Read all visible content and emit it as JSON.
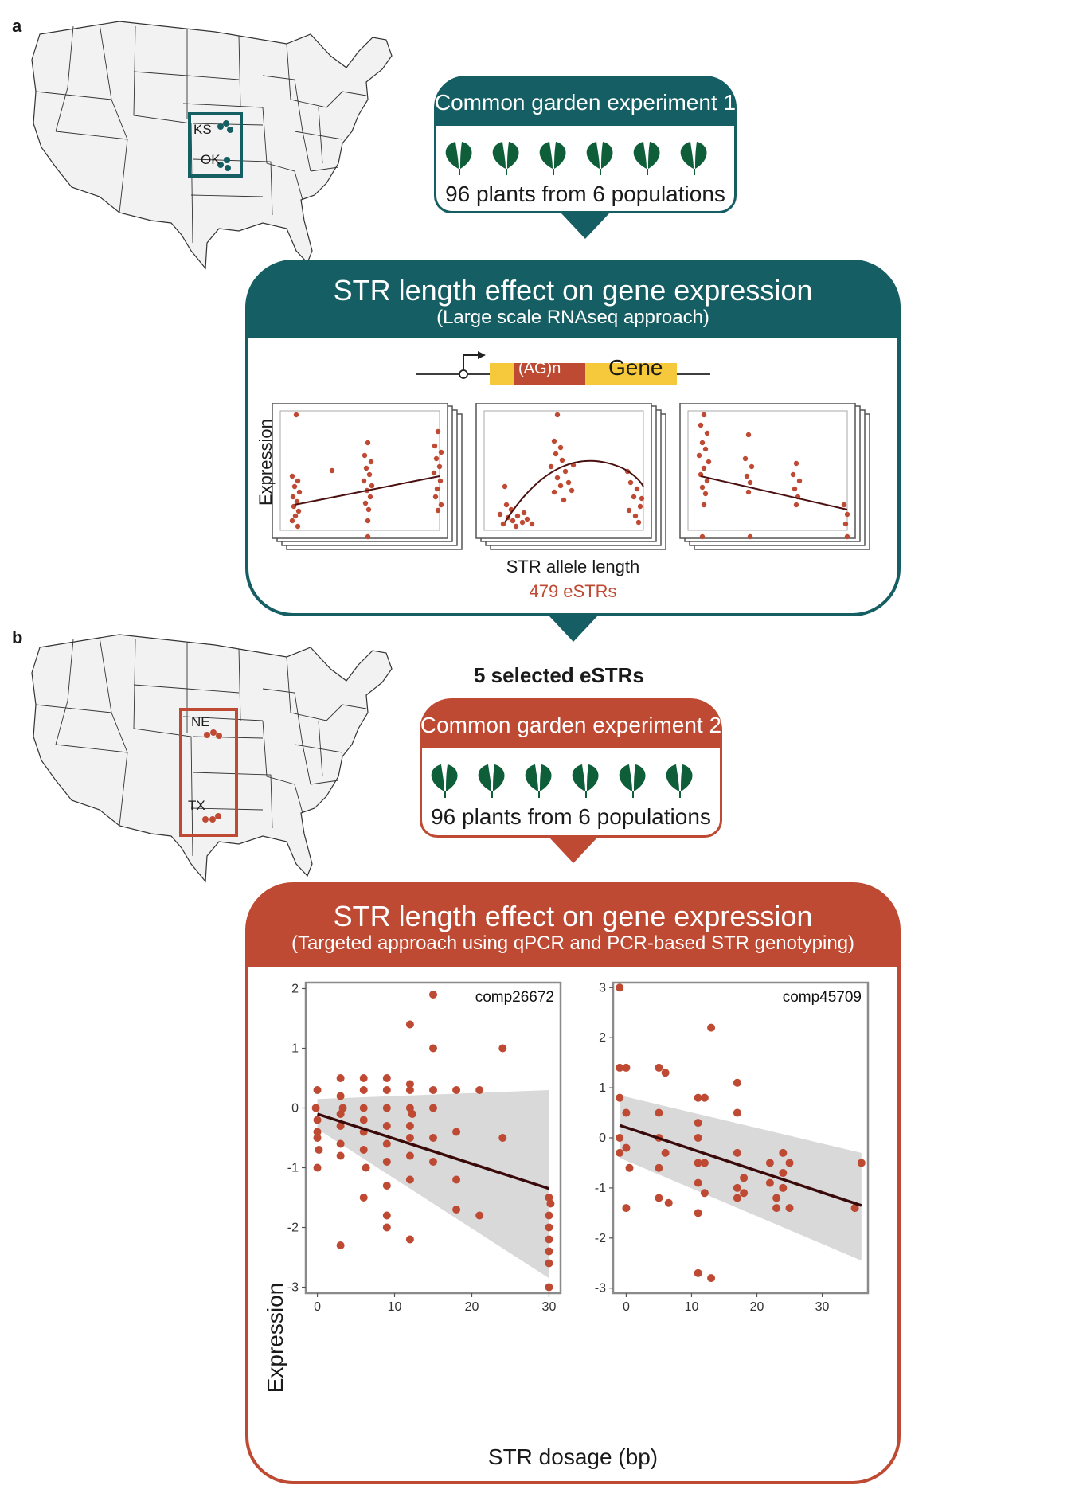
{
  "panel_a": {
    "letter": "a",
    "map_states": [
      "KS",
      "OK"
    ],
    "experiment_title": "Common garden experiment 1",
    "plants_label": "96 plants from 6 populations",
    "plant_icon": "leaf-pair-icon",
    "analysis_title": "STR length effect on gene expression",
    "analysis_subtitle": "(Large scale RNAseq approach)",
    "gene_diagram": {
      "repeat_label": "(AG)n",
      "gene_label": "Gene"
    },
    "plot_ylabel": "Expression",
    "plot_xlabel": "STR allele length",
    "result_label": "479 eSTRs"
  },
  "transition": {
    "selected_label": "5 selected eSTRs"
  },
  "panel_b": {
    "letter": "b",
    "map_states": [
      "NE",
      "TX"
    ],
    "experiment_title": "Common garden experiment 2",
    "plants_label": "96 plants from 6 populations",
    "analysis_title": "STR length effect on gene expression",
    "analysis_subtitle": "(Targeted approach using qPCR and PCR-based STR genotyping)",
    "xlabel": "STR dosage (bp)",
    "ylabel": "Expression"
  },
  "colors": {
    "teal": "#155e63",
    "rust": "#bf4a33",
    "leaf": "#0f5e3a",
    "gene_yellow": "#f6c83b"
  },
  "chart_data": [
    {
      "type": "scatter",
      "title": "comp26672",
      "xlabel": "STR dosage (bp)",
      "ylabel": "Expression",
      "xlim": [
        -1.5,
        31.5
      ],
      "ylim": [
        -3.1,
        2.1
      ],
      "x_ticks": [
        0,
        10,
        20,
        30
      ],
      "y_ticks": [
        -3,
        -2,
        -1,
        0,
        1,
        2
      ],
      "fit_line": {
        "x": [
          0,
          30
        ],
        "y": [
          -0.1,
          -1.35
        ]
      },
      "confidence_band": {
        "x": [
          0,
          30
        ],
        "upper": [
          0.15,
          0.3
        ],
        "lower": [
          -0.35,
          -2.85
        ]
      },
      "points": [
        [
          0,
          0.3
        ],
        [
          0,
          -0.4
        ],
        [
          0,
          -0.5
        ],
        [
          0,
          -0.2
        ],
        [
          0,
          -1.0
        ],
        [
          0.2,
          -0.7
        ],
        [
          -0.2,
          0.0
        ],
        [
          3,
          0.5
        ],
        [
          3,
          0.2
        ],
        [
          3,
          -0.1
        ],
        [
          3,
          -0.3
        ],
        [
          3,
          -0.6
        ],
        [
          3,
          -0.8
        ],
        [
          3,
          -2.3
        ],
        [
          3.3,
          0.0
        ],
        [
          6,
          0.5
        ],
        [
          6,
          0.3
        ],
        [
          6,
          0.0
        ],
        [
          6,
          -0.2
        ],
        [
          6,
          -0.4
        ],
        [
          6,
          -0.7
        ],
        [
          6,
          -1.5
        ],
        [
          6.3,
          -1.0
        ],
        [
          9,
          0.5
        ],
        [
          9,
          0.3
        ],
        [
          9,
          0.0
        ],
        [
          9,
          -0.3
        ],
        [
          9,
          -0.6
        ],
        [
          9,
          -0.9
        ],
        [
          9,
          -1.3
        ],
        [
          9,
          -1.8
        ],
        [
          9,
          -2.0
        ],
        [
          12,
          1.4
        ],
        [
          12,
          0.4
        ],
        [
          12,
          0.3
        ],
        [
          12,
          0.0
        ],
        [
          12,
          -0.3
        ],
        [
          12,
          -0.5
        ],
        [
          12,
          -0.8
        ],
        [
          12,
          -1.2
        ],
        [
          12,
          -2.2
        ],
        [
          12.3,
          -0.1
        ],
        [
          15,
          1.9
        ],
        [
          15,
          1.0
        ],
        [
          15,
          0.3
        ],
        [
          15,
          0.0
        ],
        [
          15,
          -0.5
        ],
        [
          15,
          -0.9
        ],
        [
          18,
          0.3
        ],
        [
          18,
          -0.4
        ],
        [
          18,
          -1.2
        ],
        [
          18,
          -1.7
        ],
        [
          21,
          0.3
        ],
        [
          21,
          -1.8
        ],
        [
          24,
          1.0
        ],
        [
          24,
          -0.5
        ],
        [
          30,
          -1.5
        ],
        [
          30,
          -1.8
        ],
        [
          30,
          -2.0
        ],
        [
          30,
          -2.2
        ],
        [
          30,
          -2.4
        ],
        [
          30,
          -2.6
        ],
        [
          30,
          -3.0
        ],
        [
          30.2,
          -1.6
        ]
      ]
    },
    {
      "type": "scatter",
      "title": "comp45709",
      "xlabel": "STR dosage (bp)",
      "ylabel": "Expression",
      "xlim": [
        -2,
        37
      ],
      "ylim": [
        -3.1,
        3.1
      ],
      "x_ticks": [
        0,
        10,
        20,
        30
      ],
      "y_ticks": [
        -3,
        -2,
        -1,
        0,
        1,
        2,
        3
      ],
      "fit_line": {
        "x": [
          -1,
          36
        ],
        "y": [
          0.25,
          -1.35
        ]
      },
      "confidence_band": {
        "x": [
          -1,
          36
        ],
        "upper": [
          0.85,
          -0.3
        ],
        "lower": [
          -0.4,
          -2.45
        ]
      },
      "points": [
        [
          -1,
          3.0
        ],
        [
          -1,
          1.4
        ],
        [
          -1,
          0.8
        ],
        [
          -1,
          0.0
        ],
        [
          -1,
          -0.3
        ],
        [
          0,
          1.4
        ],
        [
          0,
          0.5
        ],
        [
          0,
          -0.2
        ],
        [
          0,
          -1.4
        ],
        [
          0.5,
          -0.6
        ],
        [
          5,
          1.4
        ],
        [
          5,
          0.5
        ],
        [
          5,
          0.0
        ],
        [
          5,
          -0.6
        ],
        [
          5,
          -1.2
        ],
        [
          6,
          1.3
        ],
        [
          6,
          -0.3
        ],
        [
          6.5,
          -1.3
        ],
        [
          11,
          0.8
        ],
        [
          11,
          0.3
        ],
        [
          11,
          0.0
        ],
        [
          11,
          -0.5
        ],
        [
          11,
          -0.9
        ],
        [
          11,
          -1.5
        ],
        [
          11,
          -2.7
        ],
        [
          12,
          0.8
        ],
        [
          12,
          -0.5
        ],
        [
          12,
          -1.1
        ],
        [
          13,
          2.2
        ],
        [
          13,
          -2.8
        ],
        [
          17,
          1.1
        ],
        [
          17,
          0.5
        ],
        [
          17,
          -0.3
        ],
        [
          17,
          -1.0
        ],
        [
          17,
          -1.2
        ],
        [
          18,
          -0.8
        ],
        [
          18,
          -1.1
        ],
        [
          22,
          -0.5
        ],
        [
          22,
          -0.9
        ],
        [
          23,
          -1.2
        ],
        [
          23,
          -1.4
        ],
        [
          24,
          -0.3
        ],
        [
          24,
          -0.7
        ],
        [
          24,
          -1.0
        ],
        [
          25,
          -0.5
        ],
        [
          25,
          -1.4
        ],
        [
          35,
          -1.4
        ],
        [
          36,
          -0.5
        ]
      ]
    }
  ]
}
